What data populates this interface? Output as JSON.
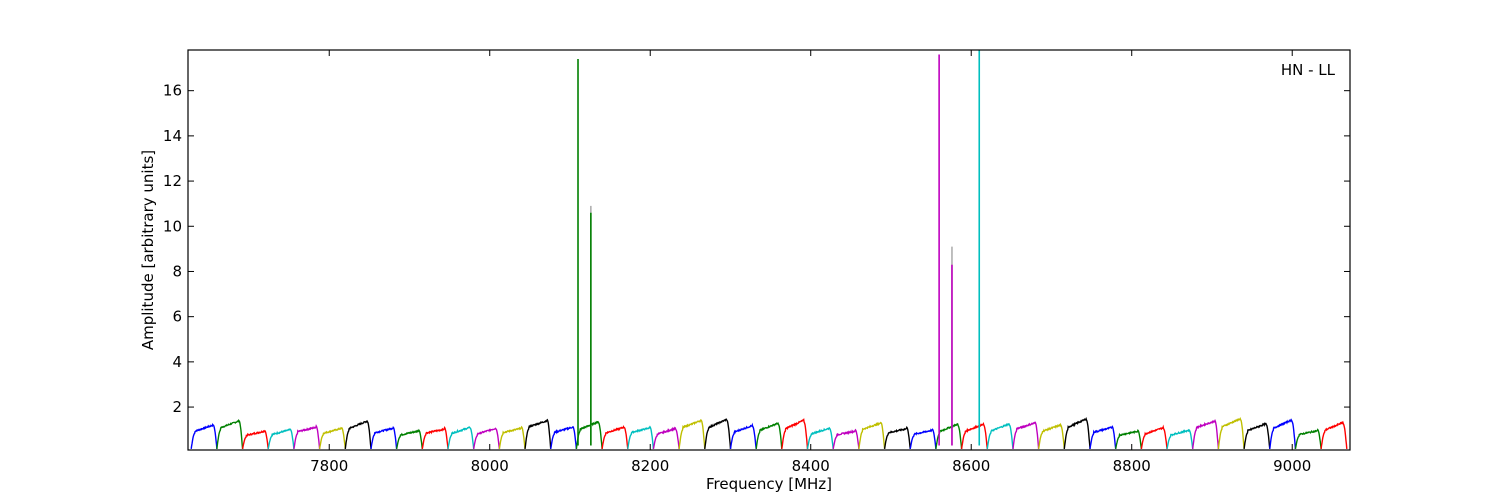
{
  "chart_data": {
    "type": "line",
    "title": "",
    "annotation": "HN - LL",
    "xlabel": "Frequency [MHz]",
    "ylabel": "Amplitude [arbitrary units]",
    "xlim": [
      7624,
      9072
    ],
    "ylim": [
      0.1,
      17.8
    ],
    "xticks": [
      7800,
      8000,
      8200,
      8400,
      8600,
      8800,
      9000
    ],
    "yticks": [
      2,
      4,
      6,
      8,
      10,
      12,
      14,
      16
    ],
    "grid": false,
    "legend": "none",
    "series_colors": [
      "#0000ff",
      "#008000",
      "#ff0000",
      "#00bfbf",
      "#bf00bf",
      "#bfbf00",
      "#000000"
    ],
    "channel": {
      "start_mhz": 7628,
      "width_mhz": 32,
      "count": 45,
      "typical_peak": 1.2,
      "edge_min": 0.15
    },
    "spikes": [
      {
        "x": 8110,
        "y": 17.4,
        "color": "#008000"
      },
      {
        "x": 8126,
        "y": 10.6,
        "color": "#008000",
        "ghost_y": 10.9
      },
      {
        "x": 8560,
        "y": 17.6,
        "color": "#bf00bf"
      },
      {
        "x": 8576,
        "y": 8.3,
        "color": "#bf00bf",
        "ghost_y": 9.1
      },
      {
        "x": 8610,
        "y": 17.8,
        "color": "#00bfbf"
      }
    ]
  }
}
